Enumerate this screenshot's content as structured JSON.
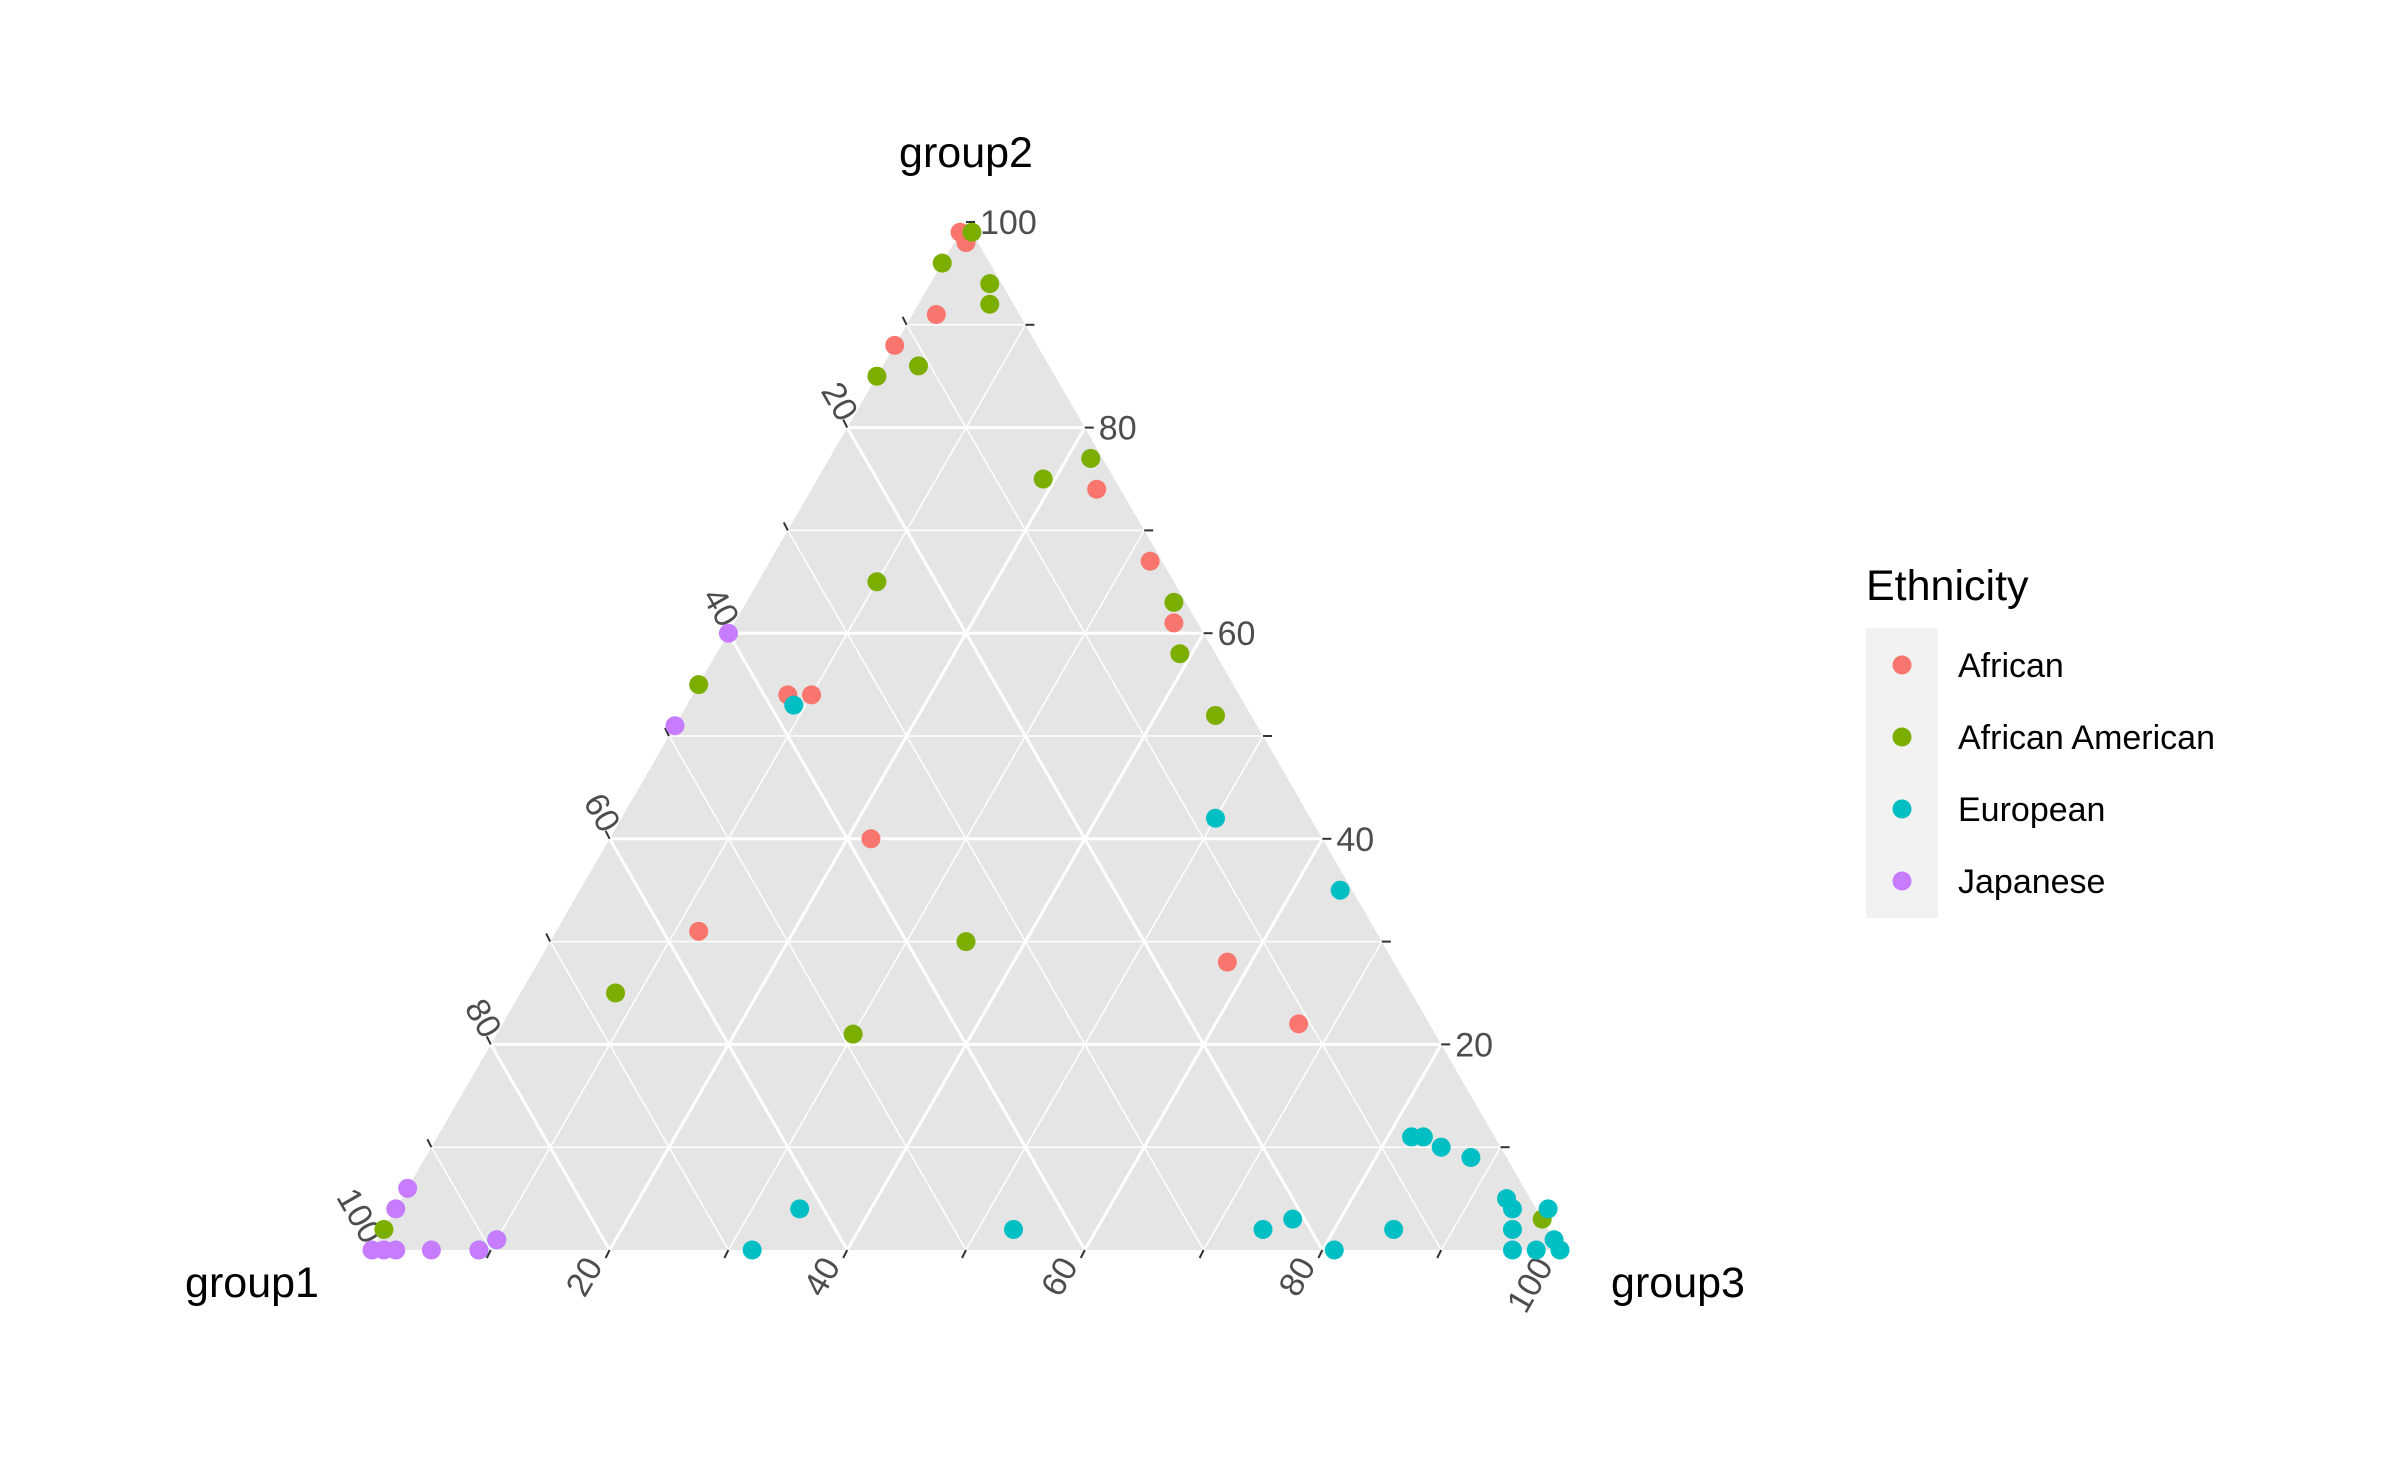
{
  "chart_data": {
    "type": "scatter",
    "subtype": "ternary",
    "grid": true,
    "axes": [
      {
        "label": "group1",
        "ticks": [
          20,
          40,
          60,
          80,
          100
        ]
      },
      {
        "label": "group2",
        "ticks": [
          20,
          40,
          60,
          80,
          100
        ]
      },
      {
        "label": "group3",
        "ticks": [
          20,
          40,
          60,
          80,
          100
        ]
      }
    ],
    "tick_labels": {
      "group1": [
        "20",
        "40",
        "60",
        "80",
        "100"
      ],
      "group2": [
        "20",
        "40",
        "60",
        "80",
        "100"
      ],
      "group3": [
        "20",
        "40",
        "60",
        "80",
        "100"
      ]
    },
    "legend": {
      "title": "Ethnicity",
      "position": "right",
      "entries": [
        {
          "name": "African",
          "color": "#F8766D"
        },
        {
          "name": "African American",
          "color": "#7CAE00"
        },
        {
          "name": "European",
          "color": "#00BFC4"
        },
        {
          "name": "Japanese",
          "color": "#C77CFF"
        }
      ]
    },
    "series": [
      {
        "name": "African",
        "points": [
          {
            "group2": 99,
            "group3": 0
          },
          {
            "group2": 98,
            "group3": 1
          },
          {
            "group2": 91,
            "group3": 2
          },
          {
            "group2": 88,
            "group3": 0
          },
          {
            "group2": 74,
            "group3": 24
          },
          {
            "group2": 67,
            "group3": 32
          },
          {
            "group2": 61,
            "group3": 37
          },
          {
            "group2": 54,
            "group3": 8
          },
          {
            "group2": 54,
            "group3": 10
          },
          {
            "group2": 40,
            "group3": 22
          },
          {
            "group2": 31,
            "group3": 12
          },
          {
            "group2": 28,
            "group3": 58
          },
          {
            "group2": 22,
            "group3": 67
          }
        ]
      },
      {
        "name": "African American",
        "points": [
          {
            "group2": 99,
            "group3": 1
          },
          {
            "group2": 96,
            "group3": 0
          },
          {
            "group2": 94,
            "group3": 5
          },
          {
            "group2": 92,
            "group3": 6
          },
          {
            "group2": 86,
            "group3": 3
          },
          {
            "group2": 85,
            "group3": 0
          },
          {
            "group2": 77,
            "group3": 22
          },
          {
            "group2": 75,
            "group3": 19
          },
          {
            "group2": 63,
            "group3": 36
          },
          {
            "group2": 58,
            "group3": 39
          },
          {
            "group2": 55,
            "group3": 0
          },
          {
            "group2": 52,
            "group3": 45
          },
          {
            "group2": 65,
            "group3": 10
          },
          {
            "group2": 30,
            "group3": 35
          },
          {
            "group2": 25,
            "group3": 8
          },
          {
            "group2": 21,
            "group3": 30
          },
          {
            "group2": 2,
            "group3": 0
          },
          {
            "group2": 3,
            "group3": 97
          }
        ]
      },
      {
        "name": "European",
        "points": [
          {
            "group2": 53,
            "group3": 9
          },
          {
            "group2": 42,
            "group3": 50
          },
          {
            "group2": 35,
            "group3": 64
          },
          {
            "group2": 11,
            "group3": 83
          },
          {
            "group2": 11,
            "group3": 82
          },
          {
            "group2": 10,
            "group3": 85
          },
          {
            "group2": 9,
            "group3": 88
          },
          {
            "group2": 5,
            "group3": 93
          },
          {
            "group2": 4,
            "group3": 94
          },
          {
            "group2": 4,
            "group3": 34
          },
          {
            "group2": 2,
            "group3": 53
          },
          {
            "group2": 3,
            "group3": 76
          },
          {
            "group2": 2,
            "group3": 74
          },
          {
            "group2": 2,
            "group3": 85
          },
          {
            "group2": 4,
            "group3": 97
          },
          {
            "group2": 2,
            "group3": 95
          },
          {
            "group2": 0,
            "group3": 96
          },
          {
            "group2": 0,
            "group3": 100
          },
          {
            "group2": 1,
            "group3": 99
          },
          {
            "group2": 0,
            "group3": 98
          },
          {
            "group2": 0,
            "group3": 81
          },
          {
            "group2": 1,
            "group3": 10
          },
          {
            "group2": 0,
            "group3": 32
          },
          {
            "group2": 0,
            "group3": 9
          }
        ]
      },
      {
        "name": "Japanese",
        "points": [
          {
            "group2": 60,
            "group3": 0
          },
          {
            "group2": 51,
            "group3": 0
          },
          {
            "group2": 6,
            "group3": 0
          },
          {
            "group2": 4,
            "group3": 0
          },
          {
            "group2": 0,
            "group3": 1
          },
          {
            "group2": 0,
            "group3": 2
          },
          {
            "group2": 0,
            "group3": 5
          },
          {
            "group2": 0,
            "group3": 9
          },
          {
            "group2": 1,
            "group3": 10
          },
          {
            "group2": 0,
            "group3": 0
          }
        ]
      }
    ]
  }
}
